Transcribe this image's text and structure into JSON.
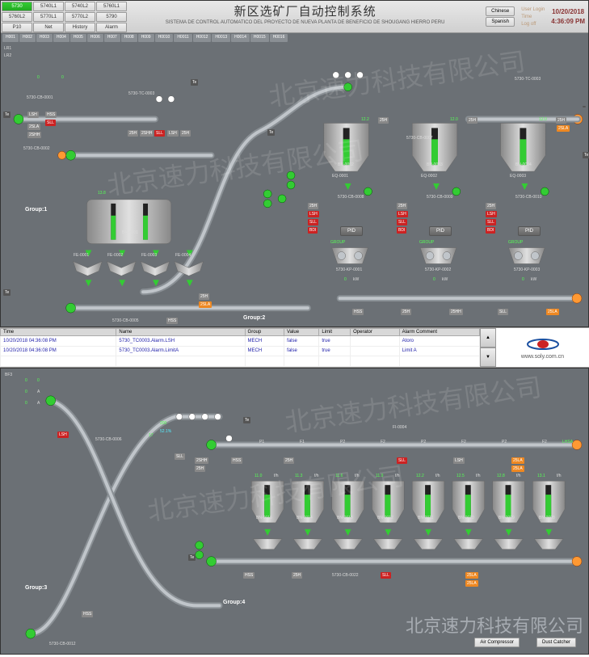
{
  "header": {
    "nav": [
      {
        "t": "5730",
        "active": true
      },
      {
        "t": "5740L1"
      },
      {
        "t": "5740L2"
      },
      {
        "t": "5760L1"
      },
      {
        "t": "5760L2"
      },
      {
        "t": "5770L1"
      },
      {
        "t": "5770L2"
      },
      {
        "t": "5790"
      },
      {
        "t": "P10"
      },
      {
        "t": "Net"
      },
      {
        "t": "History"
      },
      {
        "t": "Alarm"
      }
    ],
    "title_cn": "新区选矿厂自动控制系统",
    "title_es": "SISTEMA DE CONTROL AUTOMATICO DEL PROYECTO DE NUEVA PLANTA DE BENEFICIO DE SHOUGANG HIERRO PERU",
    "lang_ch": "Chinese",
    "lang_sp": "Spanish",
    "login": "User Login",
    "timer": "Time",
    "logoff": "Log off",
    "date": "10/20/2018",
    "time": "4:36:09 PM"
  },
  "tags_top": [
    "H001",
    "H002",
    "H003",
    "H004",
    "H005",
    "H006",
    "H007",
    "H008",
    "H009",
    "H0010",
    "H0011",
    "H0012",
    "H0013",
    "H0014",
    "H0015",
    "H0016"
  ],
  "top": {
    "groups": {
      "g1": "Group:1",
      "g2": "Group:2"
    },
    "hoppers": [
      {
        "id": "BN-0002",
        "eq": "EQ-0001",
        "cb": "5730-CB-0008",
        "pid": "PID",
        "kp": "5730-KP-0001"
      },
      {
        "id": "BN-0003",
        "eq": "EQ-0002",
        "cb": "5730-CB-0009",
        "pid": "PID",
        "kp": "5730-KP-0002"
      },
      {
        "id": "BN-0004",
        "eq": "EQ-0003",
        "cb": "5730-CB-0010",
        "pid": "PID",
        "kp": "5730-KP-0003"
      }
    ],
    "tank": {
      "id": "BN-0001"
    },
    "fe": [
      "FE-0001",
      "FE-0002",
      "FE-0003",
      "FE-0004"
    ],
    "tc": "5730-TC-0003",
    "cb1": "5730-CB-0001",
    "cb2": "5730-CB-0002",
    "cb5": "5730-CB-0005",
    "btm_tags": [
      "HSS",
      "25H",
      "25HH",
      "SLL",
      "25LA"
    ],
    "small_tags": [
      "HSS",
      "LSH",
      "SLL",
      "25LA",
      "25SH",
      "25H"
    ],
    "zsh": "2SH",
    "lsh": "LSH",
    "sll": "SLL",
    "bdi": "BDI",
    "zsla": "2SLA",
    "zshh": "2SHH",
    "hss": "HSS",
    "zsh2": "25H",
    "pct": "%",
    "kw": "kW",
    "a": "A",
    "fh": "f/h",
    "te": "Te"
  },
  "alarms": {
    "cols": [
      "Time",
      "Name",
      "Group",
      "Value",
      "Limit",
      "Operator",
      "Alarm Comment"
    ],
    "rows": [
      [
        "10/20/2018 04:36:08 PM",
        "5730_TC0003.Alarm.LSH",
        "MECH",
        "false",
        "true",
        "",
        "Atoro"
      ],
      [
        "10/20/2018 04:36:08 PM",
        "5730_TC0003.Alarm.LimitA",
        "MECH",
        "false",
        "true",
        "",
        "Limit A"
      ]
    ]
  },
  "logo": {
    "url": "www.soly.com.cn"
  },
  "bot": {
    "groups": {
      "g3": "Group:3",
      "g4": "Group:4"
    },
    "bins": [
      "BN-0015",
      "BN-0014",
      "BN-0013",
      "BN-0012",
      "BN-0011",
      "BN-0010",
      "BN-0009",
      "BN-0008"
    ],
    "cb6": "5730-CB-0006",
    "cb12": "5730-CB-0012",
    "cb22": "5730-CB-0022",
    "te": "Te",
    "btn_air": "Air Compressor",
    "btn_dust": "Dust Catcher",
    "fi": "FI-0004",
    "lhsa": "LHSA",
    "tags": [
      "HSS",
      "25H",
      "SLL",
      "LSH",
      "25LA"
    ]
  },
  "watermark": "北京速力科技有限公司",
  "colors": {
    "bg": "#6b7075",
    "metal_lo": "#888",
    "metal_hi": "#ddd",
    "green": "#33cc33",
    "orange": "#ff9933",
    "red": "#cc2222",
    "text": "#dddddd",
    "header": "#d8d8d8"
  }
}
